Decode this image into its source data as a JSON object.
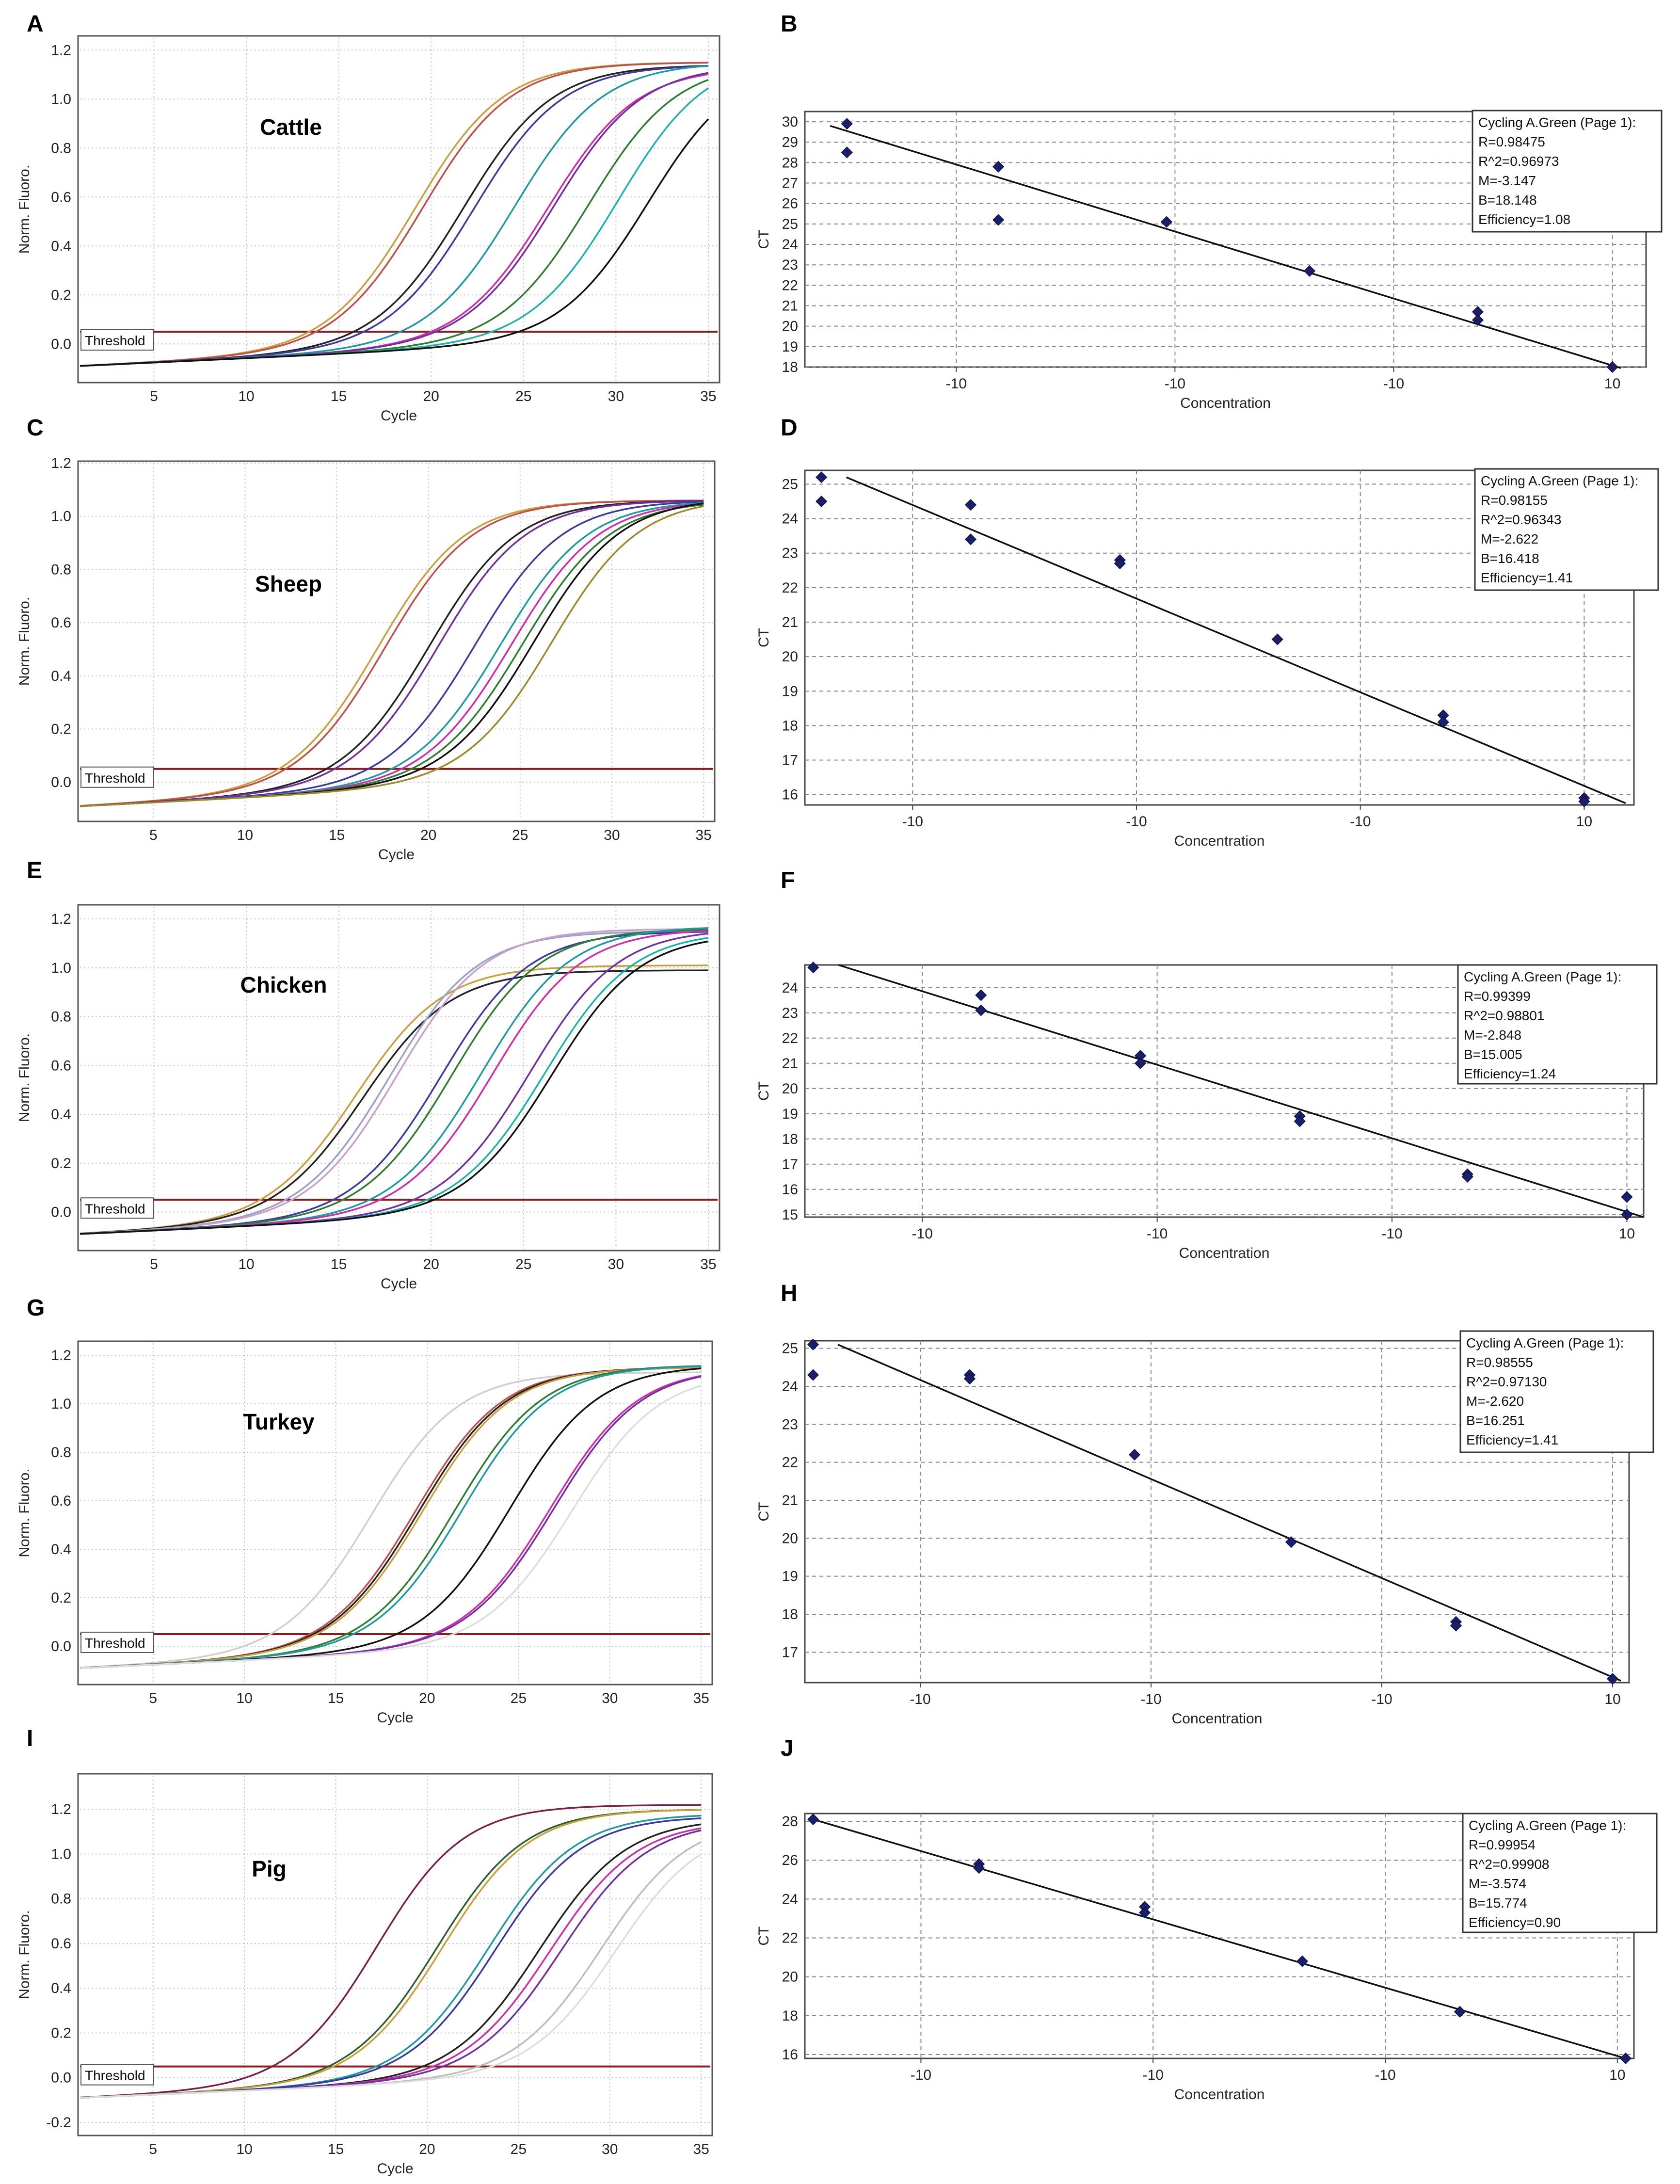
{
  "panel_labels": [
    "A",
    "B",
    "C",
    "D",
    "E",
    "F",
    "G",
    "H",
    "I",
    "J"
  ],
  "chart_data": [
    {
      "id": "A",
      "type": "line",
      "species": "Cattle",
      "xlabel": "Cycle",
      "ylabel": "Norm. Fluoro.",
      "xlim": [
        1,
        35.5
      ],
      "ylim": [
        -0.15,
        1.25
      ],
      "xticks": [
        "5",
        "10",
        "15",
        "20",
        "25",
        "30",
        "35"
      ],
      "yticks": [
        "0.0",
        "0.2",
        "0.4",
        "0.6",
        "0.8",
        "1.0",
        "1.2"
      ],
      "ytick_values": [
        0,
        0.2,
        0.4,
        0.6,
        0.8,
        1.0,
        1.2
      ],
      "xtick_values": [
        5,
        10,
        15,
        20,
        25,
        30,
        35
      ],
      "threshold_label": "Threshold",
      "threshold": 0.05,
      "series": [
        {
          "color": "#c8a03c",
          "midpoint": 19.2,
          "plateau": 1.15
        },
        {
          "color": "#c0504d",
          "midpoint": 19.6,
          "plateau": 1.15
        },
        {
          "color": "#222222",
          "midpoint": 21.8,
          "plateau": 1.14
        },
        {
          "color": "#3a3aa0",
          "midpoint": 22.4,
          "plateau": 1.14
        },
        {
          "color": "#1f9aa0",
          "midpoint": 24.6,
          "plateau": 1.15
        },
        {
          "color": "#cc2fa8",
          "midpoint": 26.4,
          "plateau": 1.13
        },
        {
          "color": "#7030a0",
          "midpoint": 26.7,
          "plateau": 1.14
        },
        {
          "color": "#2e7d32",
          "midpoint": 28.6,
          "plateau": 1.15
        },
        {
          "color": "#20b2aa",
          "midpoint": 30.2,
          "plateau": 1.18
        },
        {
          "color": "#111111",
          "midpoint": 31.8,
          "plateau": 1.15
        }
      ]
    },
    {
      "id": "B",
      "type": "scatter",
      "xlabel": "Concentration",
      "ylabel": "CT",
      "xlim": [
        0,
        1
      ],
      "ylim": [
        18,
        30.5
      ],
      "xticks": [
        "-10",
        "-10",
        "-10",
        "10"
      ],
      "xtick_values": [
        0.18,
        0.44,
        0.7,
        0.96
      ],
      "yticks": [
        "18",
        "19",
        "20",
        "21",
        "22",
        "23",
        "24",
        "25",
        "26",
        "27",
        "28",
        "29",
        "30"
      ],
      "ytick_values": [
        18,
        19,
        20,
        21,
        22,
        23,
        24,
        25,
        26,
        27,
        28,
        29,
        30
      ],
      "points": [
        [
          0.05,
          29.9
        ],
        [
          0.05,
          28.5
        ],
        [
          0.23,
          27.8
        ],
        [
          0.23,
          25.2
        ],
        [
          0.43,
          25.1
        ],
        [
          0.6,
          22.7
        ],
        [
          0.8,
          20.7
        ],
        [
          0.8,
          20.3
        ],
        [
          0.96,
          18.0
        ]
      ],
      "fit": [
        [
          0.03,
          29.8
        ],
        [
          0.97,
          17.95
        ]
      ],
      "legend": [
        "Cycling A.Green (Page 1):",
        "R=0.98475",
        "R^2=0.96973",
        "M=-3.147",
        "B=18.148",
        "Efficiency=1.08"
      ]
    },
    {
      "id": "C",
      "type": "line",
      "species": "Sheep",
      "xlabel": "Cycle",
      "ylabel": "Norm. Fluoro.",
      "xlim": [
        1,
        35.5
      ],
      "ylim": [
        -0.14,
        1.2
      ],
      "xticks": [
        "5",
        "10",
        "15",
        "20",
        "25",
        "30",
        "35"
      ],
      "yticks": [
        "0.0",
        "0.2",
        "0.4",
        "0.6",
        "0.8",
        "1.0",
        "1.2"
      ],
      "ytick_values": [
        0,
        0.2,
        0.4,
        0.6,
        0.8,
        1.0,
        1.2
      ],
      "xtick_values": [
        5,
        10,
        15,
        20,
        25,
        30,
        35
      ],
      "threshold_label": "Threshold",
      "threshold": 0.05,
      "series": [
        {
          "color": "#c8a03c",
          "midpoint": 17.3,
          "plateau": 1.06
        },
        {
          "color": "#c0504d",
          "midpoint": 17.7,
          "plateau": 1.06
        },
        {
          "color": "#222222",
          "midpoint": 20.1,
          "plateau": 1.06
        },
        {
          "color": "#7030a0",
          "midpoint": 20.6,
          "plateau": 1.06
        },
        {
          "color": "#3a3aa0",
          "midpoint": 22.6,
          "plateau": 1.06
        },
        {
          "color": "#1f9aa0",
          "midpoint": 24.0,
          "plateau": 1.06
        },
        {
          "color": "#cc2fa8",
          "midpoint": 24.6,
          "plateau": 1.06
        },
        {
          "color": "#2e7d32",
          "midpoint": 25.2,
          "plateau": 1.06
        },
        {
          "color": "#111111",
          "midpoint": 25.8,
          "plateau": 1.07
        },
        {
          "color": "#9c8a2a",
          "midpoint": 26.8,
          "plateau": 1.07
        }
      ]
    },
    {
      "id": "D",
      "type": "scatter",
      "xlabel": "Concentration",
      "ylabel": "CT",
      "xlim": [
        0,
        1
      ],
      "ylim": [
        15.7,
        25.4
      ],
      "xticks": [
        "-10",
        "-10",
        "-10",
        "10"
      ],
      "xtick_values": [
        0.13,
        0.4,
        0.67,
        0.94
      ],
      "yticks": [
        "16",
        "17",
        "18",
        "19",
        "20",
        "21",
        "22",
        "23",
        "24",
        "25"
      ],
      "ytick_values": [
        16,
        17,
        18,
        19,
        20,
        21,
        22,
        23,
        24,
        25
      ],
      "points": [
        [
          0.02,
          25.2
        ],
        [
          0.02,
          24.5
        ],
        [
          0.2,
          24.4
        ],
        [
          0.2,
          23.4
        ],
        [
          0.38,
          22.8
        ],
        [
          0.38,
          22.7
        ],
        [
          0.57,
          20.5
        ],
        [
          0.77,
          18.3
        ],
        [
          0.77,
          18.1
        ],
        [
          0.94,
          15.9
        ],
        [
          0.94,
          15.8
        ]
      ],
      "fit": [
        [
          0.05,
          25.2
        ],
        [
          0.99,
          15.75
        ]
      ],
      "legend": [
        "Cycling A.Green (Page 1):",
        "R=0.98155",
        "R^2=0.96343",
        "M=-2.622",
        "B=16.418",
        "Efficiency=1.41"
      ]
    },
    {
      "id": "E",
      "type": "line",
      "species": "Chicken",
      "xlabel": "Cycle",
      "ylabel": "Norm. Fluoro.",
      "xlim": [
        1,
        35.5
      ],
      "ylim": [
        -0.15,
        1.25
      ],
      "xticks": [
        "5",
        "10",
        "15",
        "20",
        "25",
        "30",
        "35"
      ],
      "yticks": [
        "0.0",
        "0.2",
        "0.4",
        "0.6",
        "0.8",
        "1.0",
        "1.2"
      ],
      "ytick_values": [
        0,
        0.2,
        0.4,
        0.6,
        0.8,
        1.0,
        1.2
      ],
      "xtick_values": [
        5,
        10,
        15,
        20,
        25,
        30,
        35
      ],
      "threshold_label": "Threshold",
      "threshold": 0.05,
      "series": [
        {
          "color": "#c8a03c",
          "midpoint": 16.0,
          "plateau": 1.01
        },
        {
          "color": "#222222",
          "midpoint": 16.4,
          "plateau": 0.99
        },
        {
          "color": "#9aa0c8",
          "midpoint": 17.8,
          "plateau": 1.15
        },
        {
          "color": "#c8a0c8",
          "midpoint": 18.2,
          "plateau": 1.16
        },
        {
          "color": "#3a3aa0",
          "midpoint": 20.6,
          "plateau": 1.15
        },
        {
          "color": "#2e7d32",
          "midpoint": 21.2,
          "plateau": 1.16
        },
        {
          "color": "#1f9aa0",
          "midpoint": 22.8,
          "plateau": 1.17
        },
        {
          "color": "#cc2fa8",
          "midpoint": 23.4,
          "plateau": 1.16
        },
        {
          "color": "#7030a0",
          "midpoint": 25.4,
          "plateau": 1.16
        },
        {
          "color": "#20b2aa",
          "midpoint": 26.2,
          "plateau": 1.15
        },
        {
          "color": "#111111",
          "midpoint": 26.6,
          "plateau": 1.14
        }
      ]
    },
    {
      "id": "F",
      "type": "scatter",
      "xlabel": "Concentration",
      "ylabel": "CT",
      "xlim": [
        0,
        1
      ],
      "ylim": [
        14.9,
        24.9
      ],
      "xticks": [
        "-10",
        "-10",
        "-10",
        "10"
      ],
      "xtick_values": [
        0.14,
        0.42,
        0.7,
        0.98
      ],
      "yticks": [
        "15",
        "16",
        "17",
        "18",
        "19",
        "20",
        "21",
        "22",
        "23",
        "24"
      ],
      "ytick_values": [
        15,
        16,
        17,
        18,
        19,
        20,
        21,
        22,
        23,
        24
      ],
      "points": [
        [
          0.01,
          24.8
        ],
        [
          0.21,
          23.7
        ],
        [
          0.21,
          23.1
        ],
        [
          0.4,
          21.3
        ],
        [
          0.4,
          21.0
        ],
        [
          0.59,
          18.9
        ],
        [
          0.59,
          18.7
        ],
        [
          0.79,
          16.6
        ],
        [
          0.79,
          16.5
        ],
        [
          0.98,
          15.7
        ],
        [
          0.98,
          15.0
        ]
      ],
      "fit": [
        [
          0.04,
          24.9
        ],
        [
          1.0,
          14.9
        ]
      ],
      "legend": [
        "Cycling A.Green (Page 1):",
        "R=0.99399",
        "R^2=0.98801",
        "M=-2.848",
        "B=15.005",
        "Efficiency=1.24"
      ]
    },
    {
      "id": "G",
      "type": "line",
      "species": "Turkey",
      "xlabel": "Cycle",
      "ylabel": "Norm. Fluoro.",
      "xlim": [
        1,
        35.5
      ],
      "ylim": [
        -0.15,
        1.25
      ],
      "xticks": [
        "5",
        "10",
        "15",
        "20",
        "25",
        "30",
        "35"
      ],
      "yticks": [
        "0.0",
        "0.2",
        "0.4",
        "0.6",
        "0.8",
        "1.0",
        "1.2"
      ],
      "ytick_values": [
        0,
        0.2,
        0.4,
        0.6,
        0.8,
        1.0,
        1.2
      ],
      "xtick_values": [
        5,
        10,
        15,
        20,
        25,
        30,
        35
      ],
      "threshold_label": "Threshold",
      "threshold": 0.05,
      "series": [
        {
          "color": "#cfcfcf",
          "midpoint": 17.0,
          "plateau": 1.13
        },
        {
          "color": "#c0504d",
          "midpoint": 19.4,
          "plateau": 1.15
        },
        {
          "color": "#222222",
          "midpoint": 19.6,
          "plateau": 1.15
        },
        {
          "color": "#c8a03c",
          "midpoint": 19.8,
          "plateau": 1.15
        },
        {
          "color": "#2e7d32",
          "midpoint": 21.6,
          "plateau": 1.16
        },
        {
          "color": "#1f9aa0",
          "midpoint": 22.0,
          "plateau": 1.16
        },
        {
          "color": "#111111",
          "midpoint": 24.6,
          "plateau": 1.16
        },
        {
          "color": "#cc2fa8",
          "midpoint": 26.8,
          "plateau": 1.15
        },
        {
          "color": "#7030a0",
          "midpoint": 27.0,
          "plateau": 1.15
        },
        {
          "color": "#dddddd",
          "midpoint": 28.0,
          "plateau": 1.13
        }
      ]
    },
    {
      "id": "H",
      "type": "scatter",
      "xlabel": "Concentration",
      "ylabel": "CT",
      "xlim": [
        0,
        1
      ],
      "ylim": [
        16.2,
        25.2
      ],
      "xticks": [
        "-10",
        "-10",
        "-10",
        "10"
      ],
      "xtick_values": [
        0.14,
        0.42,
        0.7,
        0.98
      ],
      "yticks": [
        "17",
        "18",
        "19",
        "20",
        "21",
        "22",
        "23",
        "24",
        "25"
      ],
      "ytick_values": [
        17,
        18,
        19,
        20,
        21,
        22,
        23,
        24,
        25
      ],
      "points": [
        [
          0.01,
          25.1
        ],
        [
          0.01,
          24.3
        ],
        [
          0.2,
          24.3
        ],
        [
          0.2,
          24.2
        ],
        [
          0.4,
          22.2
        ],
        [
          0.59,
          19.9
        ],
        [
          0.79,
          17.8
        ],
        [
          0.79,
          17.7
        ],
        [
          0.98,
          16.3
        ]
      ],
      "fit": [
        [
          0.04,
          25.1
        ],
        [
          0.99,
          16.25
        ]
      ],
      "legend": [
        "Cycling A.Green (Page 1):",
        "R=0.98555",
        "R^2=0.97130",
        "M=-2.620",
        "B=16.251",
        "Efficiency=1.41"
      ]
    },
    {
      "id": "I",
      "type": "line",
      "species": "Pig",
      "xlabel": "Cycle",
      "ylabel": "Norm. Fluoro.",
      "xlim": [
        1,
        35.5
      ],
      "ylim": [
        -0.25,
        1.35
      ],
      "xticks": [
        "5",
        "10",
        "15",
        "20",
        "25",
        "30",
        "35"
      ],
      "yticks": [
        "-0.2",
        "0.0",
        "0.2",
        "0.4",
        "0.6",
        "0.8",
        "1.0",
        "1.2"
      ],
      "ytick_values": [
        -0.2,
        0,
        0.2,
        0.4,
        0.6,
        0.8,
        1.0,
        1.2
      ],
      "xtick_values": [
        5,
        10,
        15,
        20,
        25,
        30,
        35
      ],
      "threshold_label": "Threshold",
      "threshold": 0.05,
      "series": [
        {
          "color": "#7a1f4a",
          "midpoint": 17.3,
          "plateau": 1.22
        },
        {
          "color": "#2e5f2e",
          "midpoint": 20.6,
          "plateau": 1.2
        },
        {
          "color": "#c8a03c",
          "midpoint": 20.9,
          "plateau": 1.2
        },
        {
          "color": "#1f9aa0",
          "midpoint": 23.4,
          "plateau": 1.18
        },
        {
          "color": "#3a3aa0",
          "midpoint": 23.8,
          "plateau": 1.17
        },
        {
          "color": "#222222",
          "midpoint": 26.2,
          "plateau": 1.16
        },
        {
          "color": "#cc2fa8",
          "midpoint": 26.8,
          "plateau": 1.15
        },
        {
          "color": "#7030a0",
          "midpoint": 27.4,
          "plateau": 1.15
        },
        {
          "color": "#bdbdbd",
          "midpoint": 29.6,
          "plateau": 1.16
        },
        {
          "color": "#dddddd",
          "midpoint": 30.4,
          "plateau": 1.14
        }
      ]
    },
    {
      "id": "J",
      "type": "scatter",
      "xlabel": "Concentration",
      "ylabel": "CT",
      "xlim": [
        0,
        1
      ],
      "ylim": [
        15.8,
        28.4
      ],
      "xticks": [
        "-10",
        "-10",
        "-10",
        "10"
      ],
      "xtick_values": [
        0.14,
        0.42,
        0.7,
        0.98
      ],
      "yticks": [
        "16",
        "18",
        "20",
        "22",
        "24",
        "26",
        "28"
      ],
      "ytick_values": [
        16,
        18,
        20,
        22,
        24,
        26,
        28
      ],
      "points": [
        [
          0.01,
          28.1
        ],
        [
          0.21,
          25.8
        ],
        [
          0.21,
          25.6
        ],
        [
          0.41,
          23.6
        ],
        [
          0.41,
          23.3
        ],
        [
          0.6,
          20.8
        ],
        [
          0.79,
          18.2
        ],
        [
          0.99,
          15.8
        ]
      ],
      "fit": [
        [
          0.01,
          28.1
        ],
        [
          0.99,
          15.8
        ]
      ],
      "legend": [
        "Cycling A.Green (Page 1):",
        "R=0.99954",
        "R^2=0.99908",
        "M=-3.574",
        "B=15.774",
        "Efficiency=0.90"
      ]
    }
  ]
}
